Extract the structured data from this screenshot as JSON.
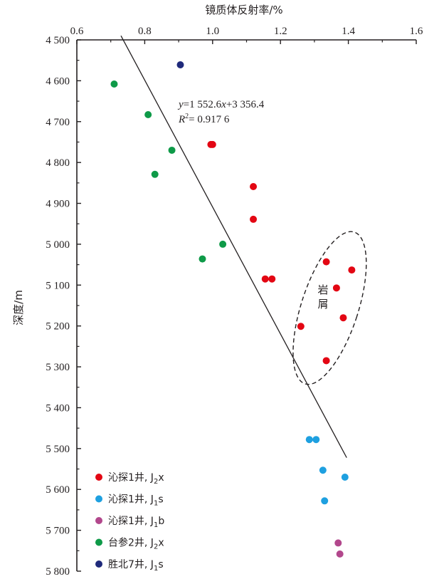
{
  "chart_data": {
    "type": "scatter",
    "xlabel": "镜质体反射率/%",
    "ylabel": "深度/m",
    "xlim": [
      0.6,
      1.6
    ],
    "ylim": [
      4500,
      5800
    ],
    "x_ticks": [
      0.6,
      0.8,
      1.0,
      1.2,
      1.4,
      1.6
    ],
    "x_tick_labels": [
      "0.6",
      "0.8",
      "1.0",
      "1.2",
      "1.4",
      "1.6"
    ],
    "y_ticks": [
      4500,
      4600,
      4700,
      4800,
      4900,
      5000,
      5100,
      5200,
      5300,
      5400,
      5500,
      5600,
      5700,
      5800
    ],
    "y_tick_labels": [
      "4 500",
      "4 600",
      "4 700",
      "4 800",
      "4 900",
      "5 000",
      "5 100",
      "5 200",
      "5 300",
      "5 400",
      "5 500",
      "5 600",
      "5 700",
      "5 800"
    ],
    "y_axis_inverted": true,
    "x_axis_position": "top",
    "grid": false,
    "legend_position": "bottom-left",
    "series": [
      {
        "name": "沁探1井, J₂x",
        "legend_main": "沁探1井, J",
        "legend_sub": "2",
        "legend_suffix": "x",
        "color": "#e30613",
        "points": [
          [
            0.995,
            4756
          ],
          [
            1.0,
            4756
          ],
          [
            1.12,
            4859
          ],
          [
            1.12,
            4939
          ],
          [
            1.155,
            5085
          ],
          [
            1.175,
            5085
          ],
          [
            1.335,
            5043
          ],
          [
            1.41,
            5063
          ],
          [
            1.365,
            5107
          ],
          [
            1.385,
            5180
          ],
          [
            1.26,
            5201
          ],
          [
            1.335,
            5285
          ]
        ]
      },
      {
        "name": "沁探1井, J₁s",
        "legend_main": "沁探1井, J",
        "legend_sub": "1",
        "legend_suffix": "s",
        "color": "#1ea0e0",
        "points": [
          [
            1.285,
            5478
          ],
          [
            1.305,
            5478
          ],
          [
            1.325,
            5553
          ],
          [
            1.39,
            5570
          ],
          [
            1.33,
            5628
          ]
        ]
      },
      {
        "name": "沁探1井, J₁b",
        "legend_main": "沁探1井, J",
        "legend_sub": "1",
        "legend_suffix": "b",
        "color": "#b2478c",
        "points": [
          [
            1.37,
            5731
          ],
          [
            1.375,
            5758
          ]
        ]
      },
      {
        "name": "台参2井, J₂x",
        "legend_main": "台参2井, J",
        "legend_sub": "2",
        "legend_suffix": "x",
        "color": "#0e9a48",
        "points": [
          [
            0.71,
            4608
          ],
          [
            0.81,
            4683
          ],
          [
            0.88,
            4770
          ],
          [
            0.83,
            4829
          ],
          [
            1.03,
            5000
          ],
          [
            0.97,
            5036
          ]
        ]
      },
      {
        "name": "胜北7井, J₁s",
        "legend_main": "胜北7井, J",
        "legend_sub": "1",
        "legend_suffix": "s",
        "color": "#1f2a7b",
        "points": [
          [
            0.905,
            4561
          ]
        ]
      }
    ],
    "trendline": {
      "equation_prefix": "y",
      "equation_body": "=1 552.6",
      "equation_var": "x",
      "equation_rest": "+3 356.4",
      "r2_label": "R",
      "r2_sup": "2",
      "r2_value": "= 0.917 6",
      "slope": 1552.6,
      "intercept": 3356.4,
      "x_range": [
        0.73,
        1.395
      ]
    },
    "annotation": {
      "label_line1": "岩",
      "label_line2": "屑",
      "ellipse_center": [
        1.345,
        5156
      ],
      "ellipse_shape": "dashed ellipse enclosing cuttings samples"
    }
  }
}
